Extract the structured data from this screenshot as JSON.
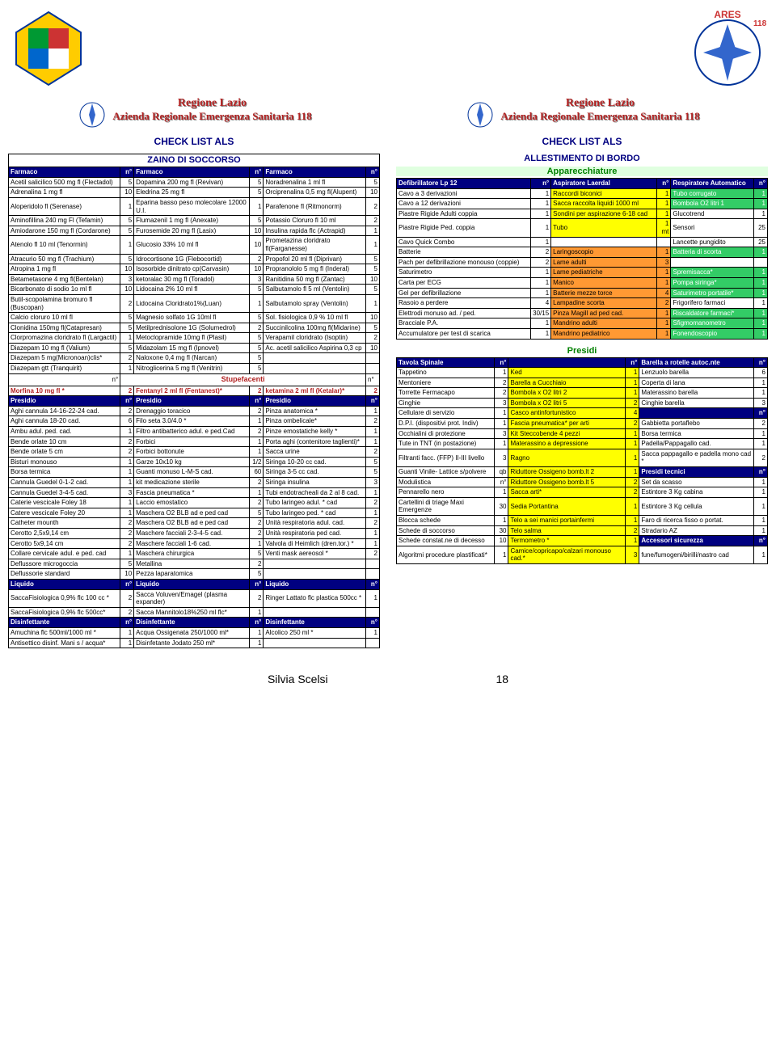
{
  "region_line1": "Regione Lazio",
  "region_line2": "Azienda Regionale Emergenza Sanitaria 118",
  "check_title": "CHECK LIST ALS",
  "zaino_title": "ZAINO DI SOCCORSO",
  "allest_title": "ALLESTIMENTO DI BORDO",
  "apparecch_title": "Apparecchiature",
  "presidi_section": "Presidi",
  "footer_name": "Silvia Scelsi",
  "footer_page": "18",
  "stupefacenti": "Stupefacenti",
  "farmaco_hdr": "Farmaco",
  "n_hdr": "n°",
  "presidio_hdr": "Presidio",
  "liquido_hdr": "Liquido",
  "disinf_hdr": "Disinfettante",
  "farmaci": [
    [
      "Acetil salicilico 500 mg fl (Flectadol)",
      "5",
      "Dopamina 200 mg fl (Revivan)",
      "5",
      "Noradrenalina 1 ml fl",
      "5"
    ],
    [
      "Adrenalina 1 mg fl",
      "10",
      "Eledrina 25 mg fl",
      "5",
      "Orciprenalina 0,5 mg fl(Alupent)",
      "10"
    ],
    [
      "Aloperidolo fl (Serenase)",
      "1",
      "Eparina basso peso molecolare 12000 U.I.",
      "1",
      "Parafenone fl (Ritmonorm)",
      "2"
    ],
    [
      "Aminofillina 240 mg Fl (Tefamin)",
      "5",
      "Flumazenil 1 mg fl (Anexate)",
      "5",
      "Potassio Cloruro fl 10 ml",
      "2"
    ],
    [
      "Amiodarone 150 mg fl (Cordarone)",
      "5",
      "Furosemide 20 mg fl (Lasix)",
      "10",
      "Insulina rapida flc (Actrapid)",
      "1"
    ],
    [
      "Atenolo fl 10 ml (Tenormin)",
      "1",
      "Glucosio 33% 10 ml fl",
      "10",
      "Prometazina cloridrato fl(Farganesse)",
      "1"
    ],
    [
      "Atracurio 50 mg fl (Trachium)",
      "5",
      "Idrocortisone 1G (Flebocortid)",
      "2",
      "Propofol 20 ml fl (Diprivan)",
      "5"
    ],
    [
      "Atropina 1 mg fl",
      "10",
      "Isosorbide dinitrato cp(Carvasin)",
      "10",
      "Propranololo 5 mg fl (Inderal)",
      "5"
    ],
    [
      "Betametasone 4 mg fl(Bentelan)",
      "3",
      "ketoralac 30 mg fl (Toradol)",
      "3",
      "Ranitidina 50 mg fl (Zantac)",
      "10"
    ],
    [
      "Bicarbonato di sodio 1o ml fl",
      "10",
      "Lidocaina 2% 10 ml fl",
      "5",
      "Salbutamolo fl 5 ml (Ventolin)",
      "5"
    ],
    [
      "Butil-scopolamina bromuro fl (Buscopan)",
      "2",
      "Lidocaina Cloridrato1%(Luan)",
      "1",
      "Salbutamolo spray (Ventolin)",
      "1"
    ],
    [
      "Calcio cloruro 10 ml fl",
      "5",
      "Magnesio solfato 1G 10ml fl",
      "5",
      "Sol. fisiologica 0,9 % 10 ml fl",
      "10"
    ],
    [
      "Clonidina 150mg fl(Catapresan)",
      "5",
      "Metilprednisolone 1G (Solumedrol)",
      "2",
      "Succinilcolina 100mg fl(Midarine)",
      "5"
    ],
    [
      "Clorpromazina cloridrato fl (Largactil)",
      "1",
      "Metoclopramide 10mg fl (Plasil)",
      "5",
      "Verapamil cloridrato (Isoptin)",
      "2"
    ],
    [
      "Diazepam 10 mg fl (Valium)",
      "5",
      "Midazolam 15 mg fl (Ipnovel)",
      "5",
      "Ac. acetil salicilico Aspirina 0,3 cp",
      "10"
    ],
    [
      "Diazepam 5 mg(Micronoan)clis*",
      "2",
      "Naloxone 0,4 mg fl (Narcan)",
      "5",
      "",
      ""
    ],
    [
      "Diazepam gtt (Tranquirit)",
      "1",
      "Nitroglicerina 5 mg fl (Venitrin)",
      "5",
      "",
      ""
    ]
  ],
  "morfina_row": [
    "Morfina 10 mg fl *",
    "2",
    "Fentanyl 2 ml fl (Fentanest)*",
    "2",
    "ketamina 2 ml fl (Ketalar)*",
    "2"
  ],
  "presidi_left": [
    [
      "Aghi cannula 14-16-22-24    cad.",
      "2",
      "Drenaggio toracico",
      "2",
      "Pinza anatomica *",
      "1"
    ],
    [
      "Aghi cannula 18-20    cad.",
      "6",
      "Filo seta 3.0/4.0 *",
      "1",
      "Pinza ombelicale*",
      "2"
    ],
    [
      "Ambu adul. ped.    cad.",
      "1",
      "Filtro antibatterico adul. e ped.Cad",
      "2",
      "Pinze emostatiche kelly *",
      "1"
    ],
    [
      "Bende orlate 10 cm",
      "2",
      "Forbici",
      "1",
      "Porta aghi (contenitore taglienti)*",
      "1"
    ],
    [
      "Bende orlate 5 cm",
      "2",
      "Forbici bottonute",
      "1",
      "Sacca urine",
      "2"
    ],
    [
      "Bisturi monouso",
      "1",
      "Garze 10x10    kg",
      "1/2",
      "Siringa 10-20 cc    cad.",
      "5"
    ],
    [
      "Borsa termica",
      "1",
      "Guanti monuso L-M-S    cad.",
      "60",
      "Siringa 3-5 cc    cad.",
      "5"
    ],
    [
      "Cannula Guedel 0-1-2    cad.",
      "1",
      "kit medicazione sterile",
      "2",
      "Siringa insulina",
      "3"
    ],
    [
      "Cannula Guedel 3-4-5    cad.",
      "3",
      "Fascia pneumatica *",
      "1",
      "Tubi endotracheali da 2 al 8 cad.",
      "1"
    ],
    [
      "Caterie vescicale Foley 18",
      "1",
      "Laccio emostatico",
      "2",
      "Tubo laringeo adul. * cad",
      "2"
    ],
    [
      "Catere vescicale Foley 20",
      "1",
      "Maschera O2 BLB ad e ped cad",
      "5",
      "Tubo laringeo ped. * cad",
      "1"
    ],
    [
      "Catheter mounth",
      "2",
      "Maschera O2 BLB ad e ped cad",
      "2",
      "Unità respiratoria adul. cad.",
      "2"
    ],
    [
      "Cerotto 2,5x9,14 cm",
      "2",
      "Maschere facciali 2-3-4-5 cad.",
      "2",
      "Unità respiratoria ped cad.",
      "1"
    ],
    [
      "Cerotto 5x9,14 cm",
      "2",
      "Maschere facciali 1-6 cad.",
      "1",
      "Valvola di Heimlich (dren.tor.) *",
      "1"
    ],
    [
      "Collare cervicale adul. e ped. cad",
      "1",
      "Maschera chirurgica",
      "5",
      "Venti mask aereosol *",
      "2"
    ],
    [
      "Deflussore microgoccia",
      "5",
      "Metallina",
      "2",
      "",
      ""
    ],
    [
      "Deflussorie standard",
      "10",
      "Pezza laparatomica",
      "5",
      "",
      ""
    ]
  ],
  "liquidi": [
    [
      "SaccaFisiologica 0,9% flc 100 cc *",
      "2",
      "Sacca Voluven/Emagel (plasma expander)",
      "2",
      "Ringer Lattato flc plastica 500cc *",
      "1"
    ],
    [
      "SaccaFisiologica 0,9% flc 500cc*",
      "2",
      "Sacca Mannitolo18%250 ml flc*",
      "1",
      "",
      ""
    ]
  ],
  "disinf": [
    [
      "Amuchina flc 500ml/1000 ml *",
      "1",
      "Acqua Ossigenata 250/1000 ml*",
      "1",
      "Alcolico 250 ml *",
      "1"
    ],
    [
      "Antisettico disinf. Mani s / acqua*",
      "1",
      "Disinfetante Jodato 250 ml*",
      "1",
      "",
      ""
    ]
  ],
  "apparecch_hdr": [
    "Defibrillatore Lp 12",
    "n°",
    "Aspiratore Laerdal",
    "n°",
    "Respiratore Automatico",
    "n°"
  ],
  "apparecch": [
    [
      "Cavo a 3 derivazioni",
      "1",
      "Raccordi biconici",
      "1",
      "Tubo corrugato",
      "1",
      "y",
      "g"
    ],
    [
      "Cavo a 12 derivazioni",
      "1",
      "Sacca raccolta liquidi 1000 ml",
      "1",
      "Bombola O2 litri 1",
      "1",
      "y",
      "g"
    ],
    [
      "Piastre Rigide Adulti    coppia",
      "1",
      "Sondini per aspirazione 6-18 cad",
      "1",
      "Glucotrend",
      "1",
      "y",
      "w"
    ],
    [
      "Piastre Rigide Ped.    coppia",
      "1",
      "Tubo",
      "1 mt",
      "Sensori",
      "25",
      "y",
      "w"
    ],
    [
      "Cavo Quick Combo",
      "1",
      "",
      "",
      "Lancette pungidito",
      "25",
      "",
      "w"
    ],
    [
      "Batterie",
      "2",
      "Laringoscopio",
      "1",
      "Batteria di scorta",
      "1",
      "o",
      "g"
    ],
    [
      "Pach per defibrillazione monouso (coppie)",
      "2",
      "Lame adulti",
      "3",
      "",
      "",
      "o",
      ""
    ],
    [
      "Saturimetro",
      "1",
      "Lame pediatriche",
      "1",
      "Spremisacca*",
      "1",
      "o",
      "g"
    ],
    [
      "Carta per ECG",
      "1",
      "Manico",
      "1",
      "Pompa siringa*",
      "1",
      "o",
      "g"
    ],
    [
      "Gel per defibrillazione",
      "1",
      "Batterie mezze torce",
      "4",
      "Saturimetro portatile*",
      "1",
      "o",
      "g"
    ],
    [
      "Rasoio a perdere",
      "4",
      "Lampadine scorta",
      "2",
      "Frigorifero farmaci",
      "1",
      "o",
      "w"
    ],
    [
      "Elettrodi monuso ad. / ped.",
      "30/15",
      "Pinza Magill ad ped    cad.",
      "1",
      "Riscaldatore farmaci*",
      "1",
      "o",
      "g"
    ],
    [
      "Bracciale P.A.",
      "1",
      "Mandrino adulti",
      "1",
      "Sfigmomanometro",
      "1",
      "o",
      "g"
    ],
    [
      "Accumulatore per test di scarica",
      "1",
      "Mandrino pediatrico",
      "1",
      "Fonendoscopio",
      "1",
      "o",
      "g"
    ]
  ],
  "presidi_right_hdr": [
    "Tavola Spinale",
    "n°",
    "",
    "n°",
    "Barella a rotelle autoc.nte",
    "n°"
  ],
  "presidi_right": [
    [
      "Tappetino",
      "1",
      "Ked",
      "1",
      "Lenzuolo barella",
      "6",
      "y",
      "w"
    ],
    [
      "Mentoniere",
      "2",
      "Barella a Cucchiaio",
      "1",
      "Coperta di lana",
      "1",
      "y",
      "w"
    ],
    [
      "Torrette Fermacapo",
      "2",
      "Bombola x O2 litri 2",
      "1",
      "Materassino barella",
      "1",
      "y",
      "w"
    ],
    [
      "Cinghie",
      "3",
      "Bombola x O2 litri 5",
      "2",
      "Cinghie barella",
      "3",
      "y",
      "w"
    ],
    [
      "Cellulare di servizio",
      "1",
      "Casco antinfortunistico",
      "4",
      "",
      "n°",
      "y",
      "nv"
    ],
    [
      "D.P.I. (dispositivi prot. Indiv)",
      "1",
      "Fascia pneumatica* per arti",
      "2",
      "Gabbietta portaflebo",
      "2",
      "y",
      "w"
    ],
    [
      "Occhialini di protezione",
      "3",
      "Kit Steccobende 4 pezzi",
      "1",
      "Borsa termica",
      "1",
      "y",
      "w"
    ],
    [
      "Tute in TNT (in postazione)",
      "1",
      "Materassino a depressione",
      "1",
      "Padella/Pappagallo cad.",
      "1",
      "y",
      "w"
    ],
    [
      "Filtranti facc. (FFP) II-III livello",
      "3",
      "Ragno",
      "1",
      "Sacca pappagallo e padella mono cad *",
      "2",
      "y",
      "w"
    ],
    [
      "Guanti Vinile- Lattice s/polvere",
      "qb",
      "Riduttore Ossigeno bomb.lt 2",
      "1",
      "Presidi tecnici",
      "n°",
      "y",
      "nv"
    ],
    [
      "Modulistica",
      "n°",
      "Riduttore Ossigeno bomb.lt 5",
      "2",
      "Set da scasso",
      "1",
      "y",
      "w"
    ],
    [
      "Pennarello nero",
      "1",
      "Sacca arti*",
      "2",
      "Estintore 3 Kg cabina",
      "1",
      "y",
      "w"
    ],
    [
      "Cartellini di triage Maxi Emergenze",
      "30",
      "Sedia Portantina",
      "1",
      "Estintore 3 Kg cellula",
      "1",
      "y",
      "w"
    ],
    [
      "Blocca schede",
      "1",
      "Telo a sei manici portainfermi",
      "1",
      "Faro di ricerca fisso o portat.",
      "1",
      "y",
      "w"
    ],
    [
      "Schede di soccorso",
      "30",
      "Telo salma",
      "2",
      "Stradario AZ",
      "1",
      "y",
      "w"
    ],
    [
      "Schede constat.ne di decesso",
      "10",
      "Termometro *",
      "1",
      "Accessori sicurezza",
      "n°",
      "y",
      "nv"
    ],
    [
      "Algoritmi procedure plastificati*",
      "1",
      "Camice/copricapo/calzari monouso cad.*",
      "3",
      "fune/fumogeni/birilli/nastro cad",
      "1",
      "y",
      "w"
    ]
  ]
}
